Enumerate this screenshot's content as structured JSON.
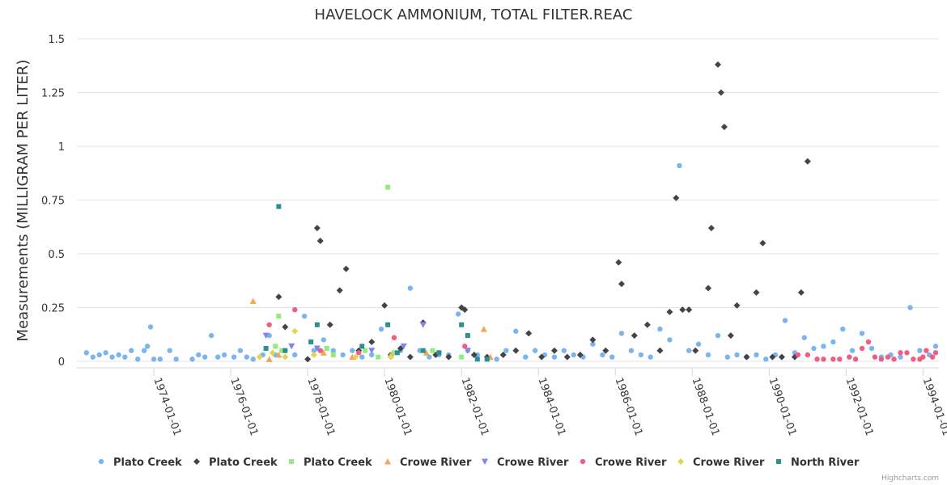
{
  "chart_data": {
    "type": "scatter",
    "title": "HAVELOCK AMMONIUM, TOTAL FILTER.REAC",
    "ylabel": "Measurements (MILLIGRAM PER LITER)",
    "xlabel": "",
    "ylim": [
      0,
      1.5
    ],
    "yticks": [
      "0",
      "0.25",
      "0.5",
      "0.75",
      "1",
      "1.25",
      "1.5"
    ],
    "xlim": [
      "1972-01-01",
      "1994-06-01"
    ],
    "xticks": [
      "1974-01-01",
      "1976-01-01",
      "1978-01-01",
      "1980-01-01",
      "1982-01-01",
      "1984-01-01",
      "1986-01-01",
      "1988-01-01",
      "1990-01-01",
      "1992-01-01",
      "1994-01-01"
    ],
    "grid": "horizontal",
    "legend_position": "bottom",
    "credits": "Highcharts.com",
    "series": [
      {
        "name": "Plato Creek",
        "marker": "circle",
        "color": "#7cb5ec",
        "points": [
          [
            "1972-04-01",
            0.04
          ],
          [
            "1972-06-01",
            0.02
          ],
          [
            "1972-08-01",
            0.03
          ],
          [
            "1972-10-01",
            0.04
          ],
          [
            "1972-12-01",
            0.02
          ],
          [
            "1973-02-01",
            0.03
          ],
          [
            "1973-04-01",
            0.02
          ],
          [
            "1973-06-01",
            0.05
          ],
          [
            "1973-08-01",
            0.01
          ],
          [
            "1973-10-01",
            0.05
          ],
          [
            "1973-11-01",
            0.07
          ],
          [
            "1973-12-01",
            0.16
          ],
          [
            "1974-01-01",
            0.01
          ],
          [
            "1974-03-01",
            0.01
          ],
          [
            "1974-06-01",
            0.05
          ],
          [
            "1974-08-01",
            0.01
          ],
          [
            "1975-01-01",
            0.01
          ],
          [
            "1975-03-01",
            0.03
          ],
          [
            "1975-05-01",
            0.02
          ],
          [
            "1975-07-01",
            0.12
          ],
          [
            "1975-09-01",
            0.02
          ],
          [
            "1975-11-01",
            0.03
          ],
          [
            "1976-02-01",
            0.02
          ],
          [
            "1976-04-01",
            0.05
          ],
          [
            "1976-06-01",
            0.02
          ],
          [
            "1976-08-01",
            0.01
          ],
          [
            "1976-11-01",
            0.03
          ],
          [
            "1977-01-01",
            0.12
          ],
          [
            "1977-03-01",
            0.03
          ],
          [
            "1977-06-01",
            0.05
          ],
          [
            "1977-09-01",
            0.03
          ],
          [
            "1977-12-01",
            0.21
          ],
          [
            "1978-03-01",
            0.05
          ],
          [
            "1978-06-01",
            0.1
          ],
          [
            "1978-09-01",
            0.05
          ],
          [
            "1978-12-01",
            0.03
          ],
          [
            "1979-03-01",
            0.05
          ],
          [
            "1979-06-01",
            0.02
          ],
          [
            "1979-09-01",
            0.03
          ],
          [
            "1979-12-01",
            0.15
          ],
          [
            "1980-03-01",
            0.03
          ],
          [
            "1980-06-01",
            0.05
          ],
          [
            "1980-09-01",
            0.34
          ],
          [
            "1980-12-01",
            0.05
          ],
          [
            "1981-03-01",
            0.02
          ],
          [
            "1981-06-01",
            0.03
          ],
          [
            "1981-09-01",
            0.03
          ],
          [
            "1981-12-01",
            0.22
          ],
          [
            "1982-03-01",
            0.05
          ],
          [
            "1982-06-01",
            0.03
          ],
          [
            "1982-09-01",
            0.01
          ],
          [
            "1982-12-01",
            0.01
          ],
          [
            "1983-03-01",
            0.05
          ],
          [
            "1983-06-01",
            0.14
          ],
          [
            "1983-09-01",
            0.02
          ],
          [
            "1983-12-01",
            0.05
          ],
          [
            "1984-03-01",
            0.03
          ],
          [
            "1984-06-01",
            0.02
          ],
          [
            "1984-09-01",
            0.05
          ],
          [
            "1984-12-01",
            0.03
          ],
          [
            "1985-03-01",
            0.02
          ],
          [
            "1985-06-01",
            0.08
          ],
          [
            "1985-09-01",
            0.03
          ],
          [
            "1985-12-01",
            0.02
          ],
          [
            "1986-03-01",
            0.13
          ],
          [
            "1986-06-01",
            0.05
          ],
          [
            "1986-09-01",
            0.03
          ],
          [
            "1986-12-01",
            0.02
          ],
          [
            "1987-03-01",
            0.15
          ],
          [
            "1987-06-01",
            0.1
          ],
          [
            "1987-09-01",
            0.91
          ],
          [
            "1987-12-01",
            0.05
          ],
          [
            "1988-03-01",
            0.08
          ],
          [
            "1988-06-01",
            0.03
          ],
          [
            "1988-09-01",
            0.12
          ],
          [
            "1988-12-01",
            0.02
          ],
          [
            "1989-03-01",
            0.03
          ],
          [
            "1989-06-01",
            0.02
          ],
          [
            "1989-09-01",
            0.03
          ],
          [
            "1989-12-01",
            0.01
          ],
          [
            "1990-03-01",
            0.03
          ],
          [
            "1990-06-01",
            0.19
          ],
          [
            "1990-09-01",
            0.04
          ],
          [
            "1990-12-01",
            0.11
          ],
          [
            "1991-03-01",
            0.06
          ],
          [
            "1991-06-01",
            0.07
          ],
          [
            "1991-09-01",
            0.09
          ],
          [
            "1991-12-01",
            0.15
          ],
          [
            "1992-03-01",
            0.05
          ],
          [
            "1992-06-01",
            0.13
          ],
          [
            "1992-09-01",
            0.06
          ],
          [
            "1992-12-01",
            0.02
          ],
          [
            "1993-03-01",
            0.03
          ],
          [
            "1993-06-01",
            0.02
          ],
          [
            "1993-09-01",
            0.25
          ],
          [
            "1993-12-01",
            0.05
          ],
          [
            "1994-03-01",
            0.03
          ],
          [
            "1994-05-01",
            0.07
          ]
        ]
      },
      {
        "name": "Plato Creek",
        "marker": "diamond",
        "color": "#434348",
        "points": [
          [
            "1977-04-01",
            0.3
          ],
          [
            "1977-06-01",
            0.16
          ],
          [
            "1978-01-01",
            0.01
          ],
          [
            "1978-04-01",
            0.62
          ],
          [
            "1978-05-01",
            0.56
          ],
          [
            "1978-08-01",
            0.17
          ],
          [
            "1978-11-01",
            0.33
          ],
          [
            "1979-01-01",
            0.43
          ],
          [
            "1979-05-01",
            0.05
          ],
          [
            "1979-09-01",
            0.09
          ],
          [
            "1980-01-01",
            0.26
          ],
          [
            "1980-03-01",
            0.03
          ],
          [
            "1980-06-01",
            0.06
          ],
          [
            "1980-09-01",
            0.02
          ],
          [
            "1981-01-01",
            0.18
          ],
          [
            "1981-05-01",
            0.03
          ],
          [
            "1981-09-01",
            0.02
          ],
          [
            "1982-01-01",
            0.25
          ],
          [
            "1982-02-01",
            0.24
          ],
          [
            "1982-05-01",
            0.03
          ],
          [
            "1982-09-01",
            0.02
          ],
          [
            "1983-02-01",
            0.03
          ],
          [
            "1983-06-01",
            0.05
          ],
          [
            "1983-10-01",
            0.13
          ],
          [
            "1984-02-01",
            0.02
          ],
          [
            "1984-06-01",
            0.05
          ],
          [
            "1984-10-01",
            0.02
          ],
          [
            "1985-02-01",
            0.03
          ],
          [
            "1985-06-01",
            0.1
          ],
          [
            "1985-10-01",
            0.05
          ],
          [
            "1986-02-01",
            0.46
          ],
          [
            "1986-03-01",
            0.36
          ],
          [
            "1986-07-01",
            0.12
          ],
          [
            "1986-11-01",
            0.17
          ],
          [
            "1987-03-01",
            0.05
          ],
          [
            "1987-06-01",
            0.23
          ],
          [
            "1987-08-01",
            0.76
          ],
          [
            "1987-10-01",
            0.24
          ],
          [
            "1987-12-01",
            0.24
          ],
          [
            "1988-02-01",
            0.05
          ],
          [
            "1988-06-01",
            0.34
          ],
          [
            "1988-07-01",
            0.62
          ],
          [
            "1988-09-01",
            1.38
          ],
          [
            "1988-10-01",
            1.25
          ],
          [
            "1988-11-01",
            1.09
          ],
          [
            "1989-01-01",
            0.12
          ],
          [
            "1989-03-01",
            0.26
          ],
          [
            "1989-06-01",
            0.02
          ],
          [
            "1989-09-01",
            0.32
          ],
          [
            "1989-11-01",
            0.55
          ],
          [
            "1990-02-01",
            0.02
          ],
          [
            "1990-05-01",
            0.02
          ],
          [
            "1990-09-01",
            0.02
          ],
          [
            "1990-11-01",
            0.32
          ],
          [
            "1991-01-01",
            0.93
          ]
        ]
      },
      {
        "name": "Plato Creek",
        "marker": "square",
        "color": "#90ed7d",
        "points": [
          [
            "1977-04-01",
            0.21
          ],
          [
            "1977-03-01",
            0.07
          ],
          [
            "1977-05-01",
            0.05
          ],
          [
            "1978-07-01",
            0.06
          ],
          [
            "1978-09-01",
            0.03
          ],
          [
            "1979-07-01",
            0.05
          ],
          [
            "1979-11-01",
            0.02
          ],
          [
            "1980-02-01",
            0.81
          ],
          [
            "1980-04-01",
            0.04
          ],
          [
            "1981-04-01",
            0.05
          ],
          [
            "1982-01-01",
            0.02
          ]
        ]
      },
      {
        "name": "Crowe River",
        "marker": "triangle",
        "color": "#f7a35c",
        "points": [
          [
            "1976-08-01",
            0.28
          ],
          [
            "1977-01-01",
            0.01
          ],
          [
            "1977-04-01",
            0.03
          ],
          [
            "1978-06-01",
            0.04
          ],
          [
            "1979-03-01",
            0.02
          ],
          [
            "1980-03-01",
            0.03
          ],
          [
            "1981-02-01",
            0.04
          ],
          [
            "1982-08-01",
            0.15
          ],
          [
            "1982-10-01",
            0.02
          ]
        ]
      },
      {
        "name": "Crowe River",
        "marker": "triangle-down",
        "color": "#8085e9",
        "points": [
          [
            "1976-12-01",
            0.12
          ],
          [
            "1977-08-01",
            0.07
          ],
          [
            "1978-04-01",
            0.06
          ],
          [
            "1979-09-01",
            0.05
          ],
          [
            "1980-07-01",
            0.07
          ],
          [
            "1981-01-01",
            0.17
          ],
          [
            "1982-03-01",
            0.05
          ]
        ]
      },
      {
        "name": "Crowe River",
        "marker": "circle",
        "color": "#f15c80",
        "points": [
          [
            "1977-01-01",
            0.17
          ],
          [
            "1977-09-01",
            0.24
          ],
          [
            "1978-05-01",
            0.05
          ],
          [
            "1979-05-01",
            0.04
          ],
          [
            "1980-04-01",
            0.11
          ],
          [
            "1981-06-01",
            0.04
          ],
          [
            "1982-02-01",
            0.07
          ],
          [
            "1990-10-01",
            0.03
          ],
          [
            "1991-01-01",
            0.03
          ],
          [
            "1991-04-01",
            0.01
          ],
          [
            "1991-06-01",
            0.01
          ],
          [
            "1991-09-01",
            0.01
          ],
          [
            "1991-11-01",
            0.01
          ],
          [
            "1992-02-01",
            0.02
          ],
          [
            "1992-04-01",
            0.01
          ],
          [
            "1992-06-01",
            0.06
          ],
          [
            "1992-08-01",
            0.09
          ],
          [
            "1992-10-01",
            0.02
          ],
          [
            "1992-12-01",
            0.01
          ],
          [
            "1993-02-01",
            0.02
          ],
          [
            "1993-04-01",
            0.01
          ],
          [
            "1993-06-01",
            0.04
          ],
          [
            "1993-08-01",
            0.04
          ],
          [
            "1993-10-01",
            0.01
          ],
          [
            "1993-12-01",
            0.01
          ],
          [
            "1994-01-01",
            0.02
          ],
          [
            "1994-02-01",
            0.05
          ],
          [
            "1994-04-01",
            0.02
          ],
          [
            "1994-05-01",
            0.04
          ]
        ]
      },
      {
        "name": "Crowe River",
        "marker": "diamond",
        "color": "#e4d354",
        "points": [
          [
            "1976-10-01",
            0.02
          ],
          [
            "1977-02-01",
            0.04
          ],
          [
            "1977-06-01",
            0.02
          ],
          [
            "1977-09-01",
            0.14
          ],
          [
            "1978-03-01",
            0.03
          ],
          [
            "1979-04-01",
            0.02
          ],
          [
            "1980-03-01",
            0.02
          ]
        ]
      },
      {
        "name": "North River",
        "marker": "square",
        "color": "#2b908f",
        "points": [
          [
            "1976-12-01",
            0.06
          ],
          [
            "1977-04-01",
            0.72
          ],
          [
            "1977-06-01",
            0.05
          ],
          [
            "1978-04-01",
            0.17
          ],
          [
            "1978-02-01",
            0.09
          ],
          [
            "1979-06-01",
            0.07
          ],
          [
            "1980-02-01",
            0.17
          ],
          [
            "1980-05-01",
            0.04
          ],
          [
            "1981-01-01",
            0.05
          ],
          [
            "1981-06-01",
            0.04
          ],
          [
            "1982-01-01",
            0.17
          ],
          [
            "1982-03-01",
            0.12
          ],
          [
            "1982-06-01",
            0.01
          ],
          [
            "1982-09-01",
            0.01
          ]
        ]
      }
    ]
  }
}
